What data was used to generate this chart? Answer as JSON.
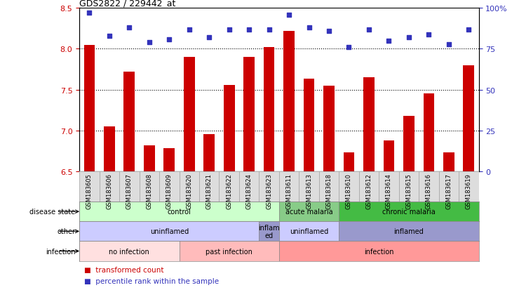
{
  "title": "GDS2822 / 229442_at",
  "samples": [
    "GSM183605",
    "GSM183606",
    "GSM183607",
    "GSM183608",
    "GSM183609",
    "GSM183620",
    "GSM183621",
    "GSM183622",
    "GSM183624",
    "GSM183623",
    "GSM183611",
    "GSM183613",
    "GSM183618",
    "GSM183610",
    "GSM183612",
    "GSM183614",
    "GSM183615",
    "GSM183616",
    "GSM183617",
    "GSM183619"
  ],
  "bar_values": [
    8.05,
    7.05,
    7.72,
    6.82,
    6.78,
    7.9,
    6.95,
    7.56,
    7.9,
    8.02,
    8.22,
    7.63,
    7.55,
    6.73,
    7.65,
    6.88,
    7.18,
    7.45,
    6.73,
    7.8
  ],
  "dot_values": [
    97,
    83,
    88,
    79,
    81,
    87,
    82,
    87,
    87,
    87,
    96,
    88,
    86,
    76,
    87,
    80,
    82,
    84,
    78,
    87
  ],
  "ylim": [
    6.5,
    8.5
  ],
  "yticks": [
    6.5,
    7.0,
    7.5,
    8.0,
    8.5
  ],
  "right_yticks": [
    0,
    25,
    50,
    75,
    100
  ],
  "bar_color": "#CC0000",
  "dot_color": "#3333BB",
  "bg_color": "#FFFFFF",
  "disease_state_groups": [
    {
      "label": "control",
      "start": 0,
      "end": 9,
      "color": "#CCFFCC"
    },
    {
      "label": "acute malaria",
      "start": 10,
      "end": 12,
      "color": "#88CC88"
    },
    {
      "label": "chronic malaria",
      "start": 13,
      "end": 19,
      "color": "#44BB44"
    }
  ],
  "other_groups": [
    {
      "label": "uninflamed",
      "start": 0,
      "end": 8,
      "color": "#CCCCFF"
    },
    {
      "label": "inflam\ned",
      "start": 9,
      "end": 9,
      "color": "#9999CC"
    },
    {
      "label": "uninflamed",
      "start": 10,
      "end": 12,
      "color": "#CCCCFF"
    },
    {
      "label": "inflamed",
      "start": 13,
      "end": 19,
      "color": "#9999CC"
    }
  ],
  "infection_groups": [
    {
      "label": "no infection",
      "start": 0,
      "end": 4,
      "color": "#FFE0E0"
    },
    {
      "label": "past infection",
      "start": 5,
      "end": 9,
      "color": "#FFBBBB"
    },
    {
      "label": "infection",
      "start": 10,
      "end": 19,
      "color": "#FF9999"
    }
  ],
  "legend_items": [
    {
      "label": "transformed count",
      "color": "#CC0000"
    },
    {
      "label": "percentile rank within the sample",
      "color": "#3333BB"
    }
  ],
  "row_labels": [
    "disease state",
    "other",
    "infection"
  ]
}
